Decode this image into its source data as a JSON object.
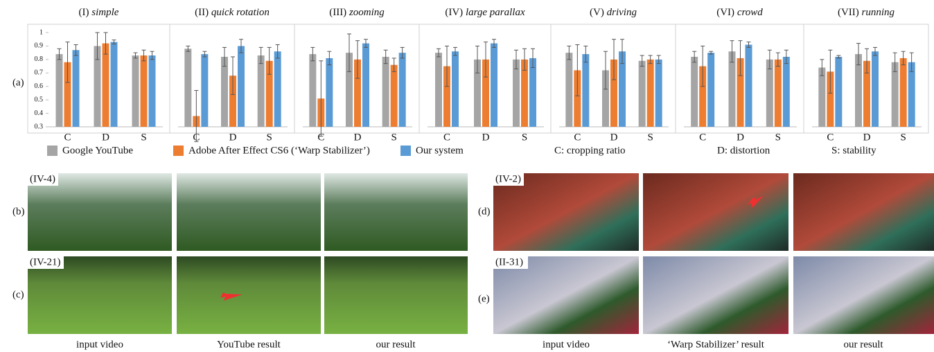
{
  "chart_data": [
    {
      "type": "bar",
      "label": "(I)",
      "title": "simple",
      "categories": [
        "C",
        "D",
        "S"
      ],
      "ylim": [
        0.3,
        1.05
      ],
      "yticks": [
        0.3,
        0.4,
        0.5,
        0.6,
        0.7,
        0.8,
        0.9,
        1
      ],
      "series": [
        {
          "color": "#a5a5a5",
          "values": [
            0.84,
            0.9,
            0.83
          ],
          "errors": [
            0.04,
            0.1,
            0.02
          ]
        },
        {
          "color": "#ed7d31",
          "values": [
            0.78,
            0.92,
            0.83
          ],
          "errors": [
            0.15,
            0.08,
            0.04
          ]
        },
        {
          "color": "#5b9bd5",
          "values": [
            0.87,
            0.93,
            0.83
          ],
          "errors": [
            0.04,
            0.015,
            0.03
          ]
        }
      ]
    },
    {
      "type": "bar",
      "label": "(II)",
      "title": "quick rotation",
      "categories": [
        "C",
        "D",
        "S"
      ],
      "ylim": [
        0.3,
        1.05
      ],
      "series": [
        {
          "color": "#a5a5a5",
          "values": [
            0.88,
            0.82,
            0.83
          ],
          "errors": [
            0.02,
            0.07,
            0.06
          ]
        },
        {
          "color": "#ed7d31",
          "values": [
            0.38,
            0.68,
            0.79
          ],
          "errors": [
            0.19,
            0.14,
            0.1
          ]
        },
        {
          "color": "#5b9bd5",
          "values": [
            0.84,
            0.9,
            0.86
          ],
          "errors": [
            0.02,
            0.05,
            0.05
          ]
        }
      ]
    },
    {
      "type": "bar",
      "label": "(III)",
      "title": "zooming",
      "categories": [
        "C",
        "D",
        "S"
      ],
      "ylim": [
        0.3,
        1.05
      ],
      "series": [
        {
          "color": "#a5a5a5",
          "values": [
            0.84,
            0.85,
            0.82
          ],
          "errors": [
            0.05,
            0.14,
            0.05
          ]
        },
        {
          "color": "#ed7d31",
          "values": [
            0.51,
            0.8,
            0.76
          ],
          "errors": [
            0.28,
            0.14,
            0.05
          ]
        },
        {
          "color": "#5b9bd5",
          "values": [
            0.81,
            0.92,
            0.85
          ],
          "errors": [
            0.05,
            0.03,
            0.04
          ]
        }
      ]
    },
    {
      "type": "bar",
      "label": "(IV)",
      "title": "large parallax",
      "categories": [
        "C",
        "D",
        "S"
      ],
      "ylim": [
        0.3,
        1.05
      ],
      "series": [
        {
          "color": "#a5a5a5",
          "values": [
            0.85,
            0.8,
            0.8
          ],
          "errors": [
            0.03,
            0.1,
            0.07
          ]
        },
        {
          "color": "#ed7d31",
          "values": [
            0.75,
            0.8,
            0.8
          ],
          "errors": [
            0.15,
            0.13,
            0.08
          ]
        },
        {
          "color": "#5b9bd5",
          "values": [
            0.86,
            0.92,
            0.81
          ],
          "errors": [
            0.03,
            0.03,
            0.07
          ]
        }
      ]
    },
    {
      "type": "bar",
      "label": "(V)",
      "title": "driving",
      "categories": [
        "C",
        "D",
        "S"
      ],
      "ylim": [
        0.3,
        1.05
      ],
      "series": [
        {
          "color": "#a5a5a5",
          "values": [
            0.85,
            0.72,
            0.79
          ],
          "errors": [
            0.05,
            0.14,
            0.04
          ]
        },
        {
          "color": "#ed7d31",
          "values": [
            0.72,
            0.8,
            0.8
          ],
          "errors": [
            0.19,
            0.15,
            0.03
          ]
        },
        {
          "color": "#5b9bd5",
          "values": [
            0.84,
            0.86,
            0.8
          ],
          "errors": [
            0.06,
            0.09,
            0.03
          ]
        }
      ]
    },
    {
      "type": "bar",
      "label": "(VI)",
      "title": "crowd",
      "categories": [
        "C",
        "D",
        "S"
      ],
      "ylim": [
        0.3,
        1.05
      ],
      "series": [
        {
          "color": "#a5a5a5",
          "values": [
            0.82,
            0.86,
            0.8
          ],
          "errors": [
            0.04,
            0.08,
            0.07
          ]
        },
        {
          "color": "#ed7d31",
          "values": [
            0.75,
            0.81,
            0.8
          ],
          "errors": [
            0.15,
            0.13,
            0.05
          ]
        },
        {
          "color": "#5b9bd5",
          "values": [
            0.85,
            0.91,
            0.82
          ],
          "errors": [
            0.01,
            0.02,
            0.05
          ]
        }
      ]
    },
    {
      "type": "bar",
      "label": "(VII)",
      "title": "running",
      "categories": [
        "C",
        "D",
        "S"
      ],
      "ylim": [
        0.3,
        1.05
      ],
      "series": [
        {
          "color": "#a5a5a5",
          "values": [
            0.74,
            0.84,
            0.78
          ],
          "errors": [
            0.06,
            0.08,
            0.07
          ]
        },
        {
          "color": "#ed7d31",
          "values": [
            0.71,
            0.79,
            0.81
          ],
          "errors": [
            0.16,
            0.09,
            0.05
          ]
        },
        {
          "color": "#5b9bd5",
          "values": [
            0.82,
            0.86,
            0.78
          ],
          "errors": [
            0.01,
            0.03,
            0.07
          ]
        }
      ]
    }
  ],
  "legend": {
    "items": [
      {
        "name": "Google YouTube",
        "color": "#a5a5a5"
      },
      {
        "name": "Adobe After Effect CS6 (‘Warp Stabilizer’)",
        "color": "#ed7d31"
      },
      {
        "name": "Our system",
        "color": "#5b9bd5"
      }
    ],
    "notes": [
      "C: cropping ratio",
      "D: distortion",
      "S: stability"
    ]
  },
  "panel_labels": [
    "(a)",
    "(b)",
    "(c)",
    "(d)",
    "(e)"
  ],
  "photos": {
    "left": {
      "row_labels": [
        "(IV-4)",
        "(IV-21)"
      ],
      "captions": [
        "input video",
        "YouTube result",
        "our result"
      ]
    },
    "right": {
      "row_labels": [
        "(IV-2)",
        "(II-31)"
      ],
      "captions": [
        "input video",
        "‘Warp Stabilizer’ result",
        "our result"
      ]
    }
  }
}
